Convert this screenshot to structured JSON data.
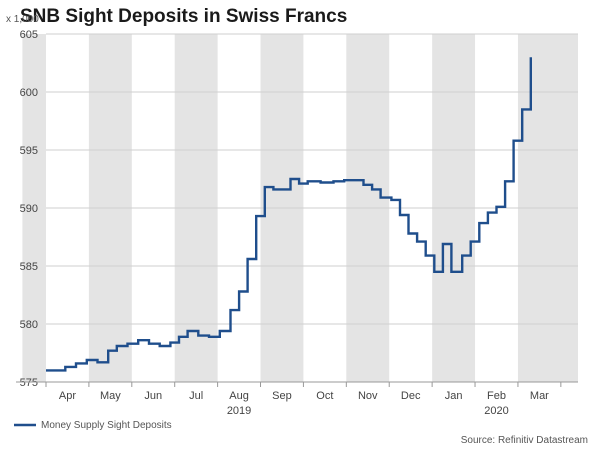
{
  "chart_data": {
    "type": "line",
    "title": "SNB Sight Deposits in Swiss Francs",
    "unit_label": "x 1,000",
    "ylim": [
      575,
      605
    ],
    "y_ticks": [
      575,
      580,
      585,
      590,
      595,
      600,
      605
    ],
    "x_month_labels": [
      "Apr",
      "May",
      "Jun",
      "Jul",
      "Aug",
      "Sep",
      "Oct",
      "Nov",
      "Dec",
      "Jan",
      "Feb",
      "Mar"
    ],
    "x_year_labels": [
      "2019",
      "2020"
    ],
    "x_range_months": [
      0,
      12.4
    ],
    "shaded_months": [
      "Mar",
      "May",
      "Jul",
      "Sep",
      "Nov",
      "Jan",
      "Mar"
    ],
    "grid": "horizontal",
    "legend": "bottom-left",
    "series": [
      {
        "name": "Money Supply Sight Deposits",
        "color": "#1f4e8c",
        "points": [
          [
            0.0,
            576.0
          ],
          [
            0.45,
            576.0
          ],
          [
            0.45,
            576.3
          ],
          [
            0.7,
            576.3
          ],
          [
            0.7,
            576.6
          ],
          [
            0.95,
            576.6
          ],
          [
            0.95,
            576.9
          ],
          [
            1.2,
            576.9
          ],
          [
            1.2,
            576.7
          ],
          [
            1.45,
            576.7
          ],
          [
            1.45,
            577.7
          ],
          [
            1.65,
            577.7
          ],
          [
            1.65,
            578.1
          ],
          [
            1.9,
            578.1
          ],
          [
            1.9,
            578.3
          ],
          [
            2.15,
            578.3
          ],
          [
            2.15,
            578.6
          ],
          [
            2.4,
            578.6
          ],
          [
            2.4,
            578.3
          ],
          [
            2.65,
            578.3
          ],
          [
            2.65,
            578.1
          ],
          [
            2.9,
            578.1
          ],
          [
            2.9,
            578.4
          ],
          [
            3.1,
            578.4
          ],
          [
            3.1,
            578.9
          ],
          [
            3.3,
            578.9
          ],
          [
            3.3,
            579.4
          ],
          [
            3.55,
            579.4
          ],
          [
            3.55,
            579.0
          ],
          [
            3.8,
            579.0
          ],
          [
            3.8,
            578.9
          ],
          [
            4.05,
            578.9
          ],
          [
            4.05,
            579.4
          ],
          [
            4.3,
            579.4
          ],
          [
            4.3,
            581.2
          ],
          [
            4.5,
            581.2
          ],
          [
            4.5,
            582.8
          ],
          [
            4.7,
            582.8
          ],
          [
            4.7,
            585.6
          ],
          [
            4.9,
            585.6
          ],
          [
            4.9,
            589.3
          ],
          [
            5.1,
            589.3
          ],
          [
            5.1,
            591.8
          ],
          [
            5.3,
            591.8
          ],
          [
            5.3,
            591.6
          ],
          [
            5.7,
            591.6
          ],
          [
            5.7,
            592.5
          ],
          [
            5.9,
            592.5
          ],
          [
            5.9,
            592.1
          ],
          [
            6.1,
            592.1
          ],
          [
            6.1,
            592.3
          ],
          [
            6.4,
            592.3
          ],
          [
            6.4,
            592.2
          ],
          [
            6.7,
            592.2
          ],
          [
            6.7,
            592.3
          ],
          [
            6.95,
            592.3
          ],
          [
            6.95,
            592.4
          ],
          [
            7.4,
            592.4
          ],
          [
            7.4,
            592.0
          ],
          [
            7.6,
            592.0
          ],
          [
            7.6,
            591.6
          ],
          [
            7.8,
            591.6
          ],
          [
            7.8,
            590.9
          ],
          [
            8.05,
            590.9
          ],
          [
            8.05,
            590.7
          ],
          [
            8.25,
            590.7
          ],
          [
            8.25,
            589.4
          ],
          [
            8.45,
            589.4
          ],
          [
            8.45,
            587.8
          ],
          [
            8.65,
            587.8
          ],
          [
            8.65,
            587.1
          ],
          [
            8.85,
            587.1
          ],
          [
            8.85,
            585.9
          ],
          [
            9.05,
            585.9
          ],
          [
            9.05,
            584.5
          ],
          [
            9.25,
            584.5
          ],
          [
            9.25,
            586.9
          ],
          [
            9.45,
            586.9
          ],
          [
            9.45,
            584.5
          ],
          [
            9.7,
            584.5
          ],
          [
            9.7,
            585.9
          ],
          [
            9.9,
            585.9
          ],
          [
            9.9,
            587.1
          ],
          [
            10.1,
            587.1
          ],
          [
            10.1,
            588.7
          ],
          [
            10.3,
            588.7
          ],
          [
            10.3,
            589.6
          ],
          [
            10.5,
            589.6
          ],
          [
            10.5,
            590.1
          ],
          [
            10.7,
            590.1
          ],
          [
            10.7,
            592.3
          ],
          [
            10.9,
            592.3
          ],
          [
            10.9,
            595.8
          ],
          [
            11.1,
            595.8
          ],
          [
            11.1,
            598.5
          ],
          [
            11.3,
            598.5
          ],
          [
            11.3,
            603.0
          ]
        ]
      }
    ],
    "source": "Source: Refinitiv Datastream"
  }
}
